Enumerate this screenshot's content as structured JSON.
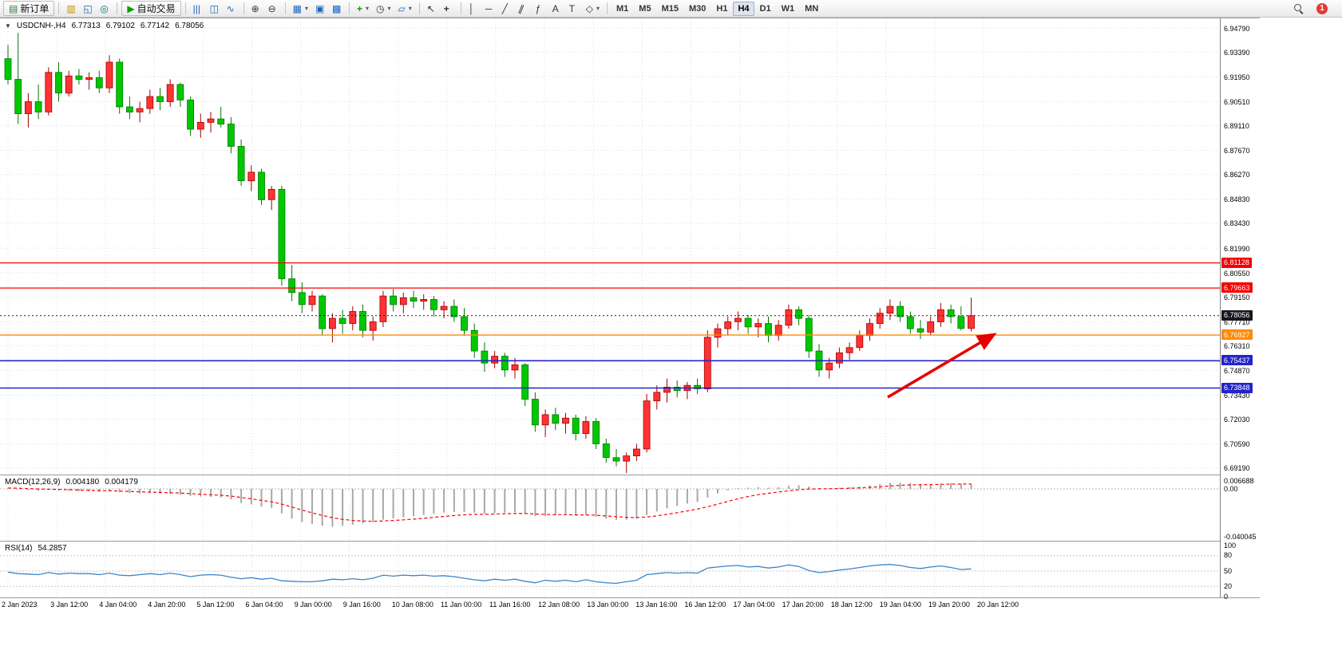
{
  "toolbar": {
    "groups": [
      {
        "items": [
          {
            "name": "new-order-button",
            "icon": "order-form",
            "label": "新订单"
          }
        ]
      },
      {
        "items": [
          {
            "name": "market-watch-button",
            "icon": "market-watch"
          },
          {
            "name": "data-window-button",
            "icon": "data-window"
          },
          {
            "name": "navigator-button",
            "icon": "navigator"
          }
        ]
      },
      {
        "items": [
          {
            "name": "autotrading-button",
            "icon": "play",
            "label": "自动交易"
          }
        ]
      },
      {
        "items": [
          {
            "name": "bar-chart-button",
            "icon": "bar-chart"
          },
          {
            "name": "candlestick-chart-button",
            "icon": "candlestick"
          },
          {
            "name": "line-chart-button",
            "icon": "line-chart"
          }
        ]
      },
      {
        "items": [
          {
            "name": "zoom-in-button",
            "icon": "zoom-in"
          },
          {
            "name": "zoom-out-button",
            "icon": "zoom-out"
          }
        ]
      },
      {
        "items": [
          {
            "name": "tile-windows-button",
            "icon": "tile",
            "caret": true
          },
          {
            "name": "cascade-windows-button",
            "icon": "cascade"
          },
          {
            "name": "arrange-windows-button",
            "icon": "arrange"
          }
        ]
      },
      {
        "items": [
          {
            "name": "indicators-button",
            "icon": "indicator-plus",
            "caret": true
          },
          {
            "name": "periods-button",
            "icon": "clock",
            "caret": true
          },
          {
            "name": "templates-button",
            "icon": "template",
            "caret": true
          }
        ]
      },
      {
        "items": [
          {
            "name": "cursor-button",
            "icon": "cursor"
          },
          {
            "name": "crosshair-button",
            "icon": "crosshair"
          }
        ]
      },
      {
        "items": [
          {
            "name": "vertical-line-button",
            "icon": "vline"
          },
          {
            "name": "horizontal-line-button",
            "icon": "hline"
          },
          {
            "name": "trendline-button",
            "icon": "trendline"
          },
          {
            "name": "channel-button",
            "icon": "channel"
          },
          {
            "name": "fibonacci-button",
            "icon": "fibonacci"
          },
          {
            "name": "text-button",
            "icon": "text"
          },
          {
            "name": "label-button",
            "icon": "label"
          },
          {
            "name": "shapes-button",
            "icon": "shapes",
            "caret": true
          }
        ]
      }
    ],
    "timeframes": {
      "active": "H4",
      "items": [
        "M1",
        "M5",
        "M15",
        "M30",
        "H1",
        "H4",
        "D1",
        "W1",
        "MN"
      ]
    },
    "right": {
      "notification_count": "1"
    }
  },
  "chart": {
    "title": {
      "marker": "▼",
      "symbol": "USDCNH-,H4",
      "open": "6.77313",
      "high": "6.79102",
      "low": "6.77142",
      "close": "6.78056"
    },
    "price_axis_labels": [
      "6.94790",
      "6.93390",
      "6.91950",
      "6.90510",
      "6.89110",
      "6.87670",
      "6.86270",
      "6.84830",
      "6.83430",
      "6.81990",
      "6.80550",
      "6.79150",
      "6.77710",
      "6.76310",
      "6.74870",
      "6.73430",
      "6.72030",
      "6.70590",
      "6.69190"
    ],
    "levels": [
      {
        "name": "resistance-line-1",
        "label": "6.81128",
        "value": 6.81128,
        "color": "#f50000",
        "style": "solid",
        "width": 1.2
      },
      {
        "name": "resistance-line-2",
        "label": "6.79663",
        "value": 6.79663,
        "color": "#f50000",
        "style": "solid",
        "width": 1.2
      },
      {
        "name": "current-price-line",
        "label": "6.78056",
        "value": 6.78056,
        "color": "#15171e",
        "style": "dotted",
        "width": 1
      },
      {
        "name": "pivot-line",
        "label": "6.76927",
        "value": 6.76927,
        "color": "#ff8a00",
        "style": "solid",
        "width": 1.4
      },
      {
        "name": "support-line-1",
        "label": "6.75437",
        "value": 6.75437,
        "color": "#2424c8",
        "style": "solid",
        "width": 1.6
      },
      {
        "name": "support-line-2",
        "label": "6.73848",
        "value": 6.73848,
        "color": "#2424c8",
        "style": "solid",
        "width": 1.6
      }
    ],
    "time_axis_labels": [
      "2 Jan 2023",
      "3 Jan 12:00",
      "4 Jan 04:00",
      "4 Jan 20:00",
      "5 Jan 12:00",
      "6 Jan 04:00",
      "9 Jan 00:00",
      "9 Jan 16:00",
      "10 Jan 08:00",
      "11 Jan 00:00",
      "11 Jan 16:00",
      "12 Jan 08:00",
      "13 Jan 00:00",
      "13 Jan 16:00",
      "16 Jan 12:00",
      "17 Jan 04:00",
      "17 Jan 20:00",
      "18 Jan 12:00",
      "19 Jan 04:00",
      "19 Jan 20:00",
      "20 Jan 12:00"
    ],
    "colors": {
      "up": "#ff3333",
      "up_border": "#a40000",
      "down": "#00c800",
      "down_border": "#007800",
      "grid": "#dcdcdc",
      "arrow": "#e60000",
      "macd_hist": "#a8a8a8",
      "macd_signal": "#ff0000",
      "rsi_line": "#3d85c6"
    }
  },
  "indicators": {
    "macd": {
      "label": "MACD(12,26,9)",
      "value_main": "0.004180",
      "value_signal": "0.004179",
      "scale_labels": [
        "0.006688",
        "0.00",
        "-0.040045"
      ]
    },
    "rsi": {
      "label": "RSI(14)",
      "value": "54.2857",
      "scale_labels": [
        "100",
        "80",
        "50",
        "20",
        "0"
      ],
      "levels": [
        80,
        50,
        20
      ]
    }
  },
  "chart_data": {
    "type": "candlestick",
    "symbol": "USDCNH-",
    "timeframe": "H4",
    "title": "USDCNH-,H4",
    "y_range": [
      6.688,
      6.955
    ],
    "x_labels": [
      "2 Jan 2023",
      "3 Jan 12:00",
      "4 Jan 04:00",
      "4 Jan 20:00",
      "5 Jan 12:00",
      "6 Jan 04:00",
      "9 Jan 00:00",
      "9 Jan 16:00",
      "10 Jan 08:00",
      "11 Jan 00:00",
      "11 Jan 16:00",
      "12 Jan 08:00",
      "13 Jan 00:00",
      "13 Jan 16:00",
      "16 Jan 12:00",
      "17 Jan 04:00",
      "17 Jan 20:00",
      "18 Jan 12:00",
      "19 Jan 04:00",
      "19 Jan 20:00",
      "20 Jan 12:00"
    ],
    "ohlc": [
      [
        6.93,
        6.938,
        6.915,
        6.918
      ],
      [
        6.918,
        6.945,
        6.892,
        6.898
      ],
      [
        6.898,
        6.91,
        6.89,
        6.905
      ],
      [
        6.905,
        6.915,
        6.895,
        6.899
      ],
      [
        6.899,
        6.925,
        6.897,
        6.922
      ],
      [
        6.922,
        6.928,
        6.905,
        6.91
      ],
      [
        6.91,
        6.923,
        6.908,
        6.92
      ],
      [
        6.92,
        6.924,
        6.915,
        6.918
      ],
      [
        6.918,
        6.922,
        6.912,
        6.919
      ],
      [
        6.919,
        6.923,
        6.91,
        6.913
      ],
      [
        6.913,
        6.932,
        6.91,
        6.928
      ],
      [
        6.928,
        6.93,
        6.898,
        6.902
      ],
      [
        6.902,
        6.908,
        6.895,
        6.899
      ],
      [
        6.899,
        6.905,
        6.893,
        6.901
      ],
      [
        6.901,
        6.912,
        6.898,
        6.908
      ],
      [
        6.908,
        6.913,
        6.9,
        6.905
      ],
      [
        6.905,
        6.918,
        6.902,
        6.915
      ],
      [
        6.915,
        6.916,
        6.902,
        6.906
      ],
      [
        6.906,
        6.908,
        6.885,
        6.889
      ],
      [
        6.889,
        6.898,
        6.884,
        6.893
      ],
      [
        6.893,
        6.899,
        6.887,
        6.895
      ],
      [
        6.895,
        6.902,
        6.89,
        6.892
      ],
      [
        6.892,
        6.896,
        6.875,
        6.879
      ],
      [
        6.879,
        6.883,
        6.856,
        6.859
      ],
      [
        6.859,
        6.868,
        6.853,
        6.864
      ],
      [
        6.864,
        6.866,
        6.845,
        6.848
      ],
      [
        6.848,
        6.856,
        6.842,
        6.854
      ],
      [
        6.854,
        6.856,
        6.798,
        6.802
      ],
      [
        6.802,
        6.81,
        6.789,
        6.794
      ],
      [
        6.794,
        6.8,
        6.782,
        6.787
      ],
      [
        6.787,
        6.795,
        6.783,
        6.792
      ],
      [
        6.792,
        6.793,
        6.769,
        6.773
      ],
      [
        6.773,
        6.782,
        6.765,
        6.779
      ],
      [
        6.779,
        6.784,
        6.77,
        6.776
      ],
      [
        6.776,
        6.786,
        6.772,
        6.783
      ],
      [
        6.783,
        6.787,
        6.768,
        6.772
      ],
      [
        6.772,
        6.78,
        6.766,
        6.777
      ],
      [
        6.777,
        6.795,
        6.774,
        6.792
      ],
      [
        6.792,
        6.796,
        6.783,
        6.787
      ],
      [
        6.787,
        6.794,
        6.782,
        6.791
      ],
      [
        6.791,
        6.795,
        6.785,
        6.789
      ],
      [
        6.789,
        6.793,
        6.784,
        6.79
      ],
      [
        6.79,
        6.792,
        6.78,
        6.784
      ],
      [
        6.784,
        6.789,
        6.779,
        6.786
      ],
      [
        6.786,
        6.79,
        6.777,
        6.78
      ],
      [
        6.78,
        6.785,
        6.769,
        6.772
      ],
      [
        6.772,
        6.776,
        6.756,
        6.76
      ],
      [
        6.76,
        6.765,
        6.748,
        6.753
      ],
      [
        6.753,
        6.76,
        6.75,
        6.757
      ],
      [
        6.757,
        6.759,
        6.745,
        6.749
      ],
      [
        6.749,
        6.756,
        6.744,
        6.752
      ],
      [
        6.752,
        6.753,
        6.728,
        6.732
      ],
      [
        6.732,
        6.736,
        6.713,
        6.717
      ],
      [
        6.717,
        6.726,
        6.71,
        6.723
      ],
      [
        6.723,
        6.727,
        6.714,
        6.718
      ],
      [
        6.718,
        6.724,
        6.712,
        6.721
      ],
      [
        6.721,
        6.723,
        6.708,
        6.712
      ],
      [
        6.712,
        6.722,
        6.709,
        6.719
      ],
      [
        6.719,
        6.721,
        6.703,
        6.706
      ],
      [
        6.706,
        6.709,
        6.695,
        6.698
      ],
      [
        6.698,
        6.703,
        6.693,
        6.696
      ],
      [
        6.696,
        6.701,
        6.689,
        6.699
      ],
      [
        6.699,
        6.706,
        6.696,
        6.703
      ],
      [
        6.703,
        6.735,
        6.701,
        6.731
      ],
      [
        6.731,
        6.74,
        6.726,
        6.736
      ],
      [
        6.736,
        6.744,
        6.73,
        6.739
      ],
      [
        6.739,
        6.743,
        6.733,
        6.737
      ],
      [
        6.737,
        6.742,
        6.732,
        6.74
      ],
      [
        6.74,
        6.744,
        6.735,
        6.738
      ],
      [
        6.738,
        6.772,
        6.736,
        6.768
      ],
      [
        6.768,
        6.776,
        6.762,
        6.773
      ],
      [
        6.773,
        6.78,
        6.769,
        6.777
      ],
      [
        6.777,
        6.783,
        6.772,
        6.779
      ],
      [
        6.779,
        6.781,
        6.77,
        6.774
      ],
      [
        6.774,
        6.779,
        6.768,
        6.776
      ],
      [
        6.776,
        6.78,
        6.765,
        6.769
      ],
      [
        6.769,
        6.778,
        6.766,
        6.775
      ],
      [
        6.775,
        6.787,
        6.773,
        6.784
      ],
      [
        6.784,
        6.786,
        6.775,
        6.779
      ],
      [
        6.779,
        6.781,
        6.756,
        6.76
      ],
      [
        6.76,
        6.764,
        6.745,
        6.749
      ],
      [
        6.749,
        6.756,
        6.744,
        6.753
      ],
      [
        6.753,
        6.762,
        6.75,
        6.759
      ],
      [
        6.759,
        6.765,
        6.755,
        6.762
      ],
      [
        6.762,
        6.772,
        6.76,
        6.769
      ],
      [
        6.769,
        6.779,
        6.766,
        6.776
      ],
      [
        6.776,
        6.785,
        6.773,
        6.782
      ],
      [
        6.782,
        6.79,
        6.778,
        6.786
      ],
      [
        6.786,
        6.789,
        6.777,
        6.78
      ],
      [
        6.78,
        6.783,
        6.77,
        6.773
      ],
      [
        6.773,
        6.778,
        6.767,
        6.771
      ],
      [
        6.771,
        6.78,
        6.769,
        6.777
      ],
      [
        6.777,
        6.788,
        6.774,
        6.784
      ],
      [
        6.784,
        6.787,
        6.776,
        6.78
      ],
      [
        6.78,
        6.786,
        6.772,
        6.77313
      ],
      [
        6.77313,
        6.79102,
        6.77142,
        6.78056
      ]
    ],
    "macd_histogram": [
      0.0008,
      -0.0004,
      -0.001,
      -0.0014,
      -0.001,
      -0.0013,
      -0.0016,
      -0.0019,
      -0.0021,
      -0.0024,
      -0.002,
      -0.0028,
      -0.0034,
      -0.0038,
      -0.0036,
      -0.0039,
      -0.0042,
      -0.0048,
      -0.0058,
      -0.0064,
      -0.0067,
      -0.007,
      -0.0088,
      -0.0118,
      -0.0128,
      -0.0148,
      -0.0158,
      -0.0205,
      -0.0248,
      -0.0278,
      -0.0292,
      -0.0308,
      -0.0318,
      -0.031,
      -0.03,
      -0.029,
      -0.0278,
      -0.0258,
      -0.0248,
      -0.0238,
      -0.0228,
      -0.0218,
      -0.0208,
      -0.0198,
      -0.0193,
      -0.0193,
      -0.0198,
      -0.0208,
      -0.0203,
      -0.0198,
      -0.0193,
      -0.0208,
      -0.0228,
      -0.0228,
      -0.0223,
      -0.0218,
      -0.0223,
      -0.0218,
      -0.0233,
      -0.0248,
      -0.0258,
      -0.0258,
      -0.0248,
      -0.0218,
      -0.0188,
      -0.0163,
      -0.0143,
      -0.0123,
      -0.0108,
      -0.0073,
      -0.0038,
      -0.0013,
      0.0006,
      0.001,
      0.0015,
      0.001,
      0.0015,
      0.0025,
      0.003,
      0.002,
      0.0008,
      0.0005,
      0.001,
      0.0015,
      0.002,
      0.003,
      0.004,
      0.005,
      0.0052,
      0.0048,
      0.0042,
      0.004,
      0.0045,
      0.0048,
      0.0043,
      0.00418
    ],
    "macd_scale": {
      "max": 0.006688,
      "min": -0.040045
    },
    "rsi": [
      48,
      45,
      44,
      43,
      47,
      44,
      46,
      45,
      45,
      43,
      46,
      42,
      41,
      43,
      45,
      43,
      46,
      43,
      39,
      42,
      43,
      42,
      38,
      35,
      37,
      34,
      36,
      31,
      30,
      29,
      29,
      31,
      34,
      33,
      35,
      33,
      36,
      42,
      40,
      42,
      41,
      42,
      40,
      41,
      39,
      36,
      33,
      31,
      34,
      32,
      34,
      30,
      27,
      32,
      30,
      32,
      29,
      33,
      29,
      27,
      26,
      29,
      32,
      43,
      45,
      47,
      46,
      47,
      46,
      56,
      58,
      60,
      61,
      58,
      59,
      56,
      58,
      62,
      59,
      51,
      47,
      49,
      52,
      54,
      57,
      60,
      62,
      63,
      61,
      57,
      55,
      58,
      60,
      57,
      53,
      54.29
    ],
    "annotations": [
      {
        "type": "arrow",
        "color": "#e60000",
        "note": "upward red arrow pointing toward the orange 6.76927 level at the right side of the chart"
      }
    ]
  }
}
